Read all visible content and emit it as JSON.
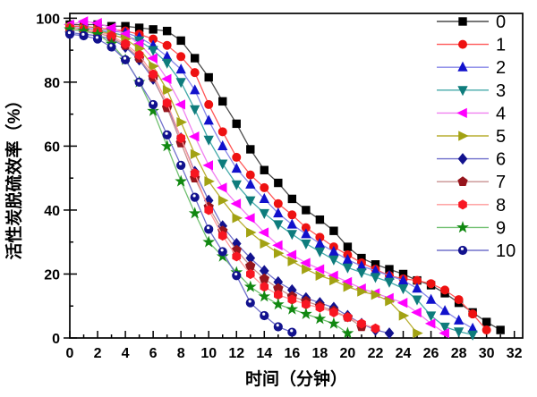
{
  "chart_data": {
    "type": "line",
    "title": "",
    "xlabel": "时间（分钟）",
    "ylabel": "活性炭脱硫效率（%）",
    "xlim": [
      0,
      32.6
    ],
    "ylim": [
      0,
      101.5
    ],
    "x_major_ticks": [
      0,
      2,
      4,
      6,
      8,
      10,
      12,
      14,
      16,
      18,
      20,
      22,
      24,
      26,
      28,
      30,
      32
    ],
    "x_minor_step": 1,
    "y_major_ticks": [
      0,
      20,
      40,
      60,
      80,
      100
    ],
    "y_minor_step": 10,
    "grid": false,
    "legend_position": "top-right-inside",
    "legend_entries": [
      "0",
      "1",
      "2",
      "3",
      "4",
      "5",
      "6",
      "7",
      "8",
      "9",
      "10"
    ],
    "series": [
      {
        "name": "0",
        "marker": "square",
        "marker_color": "#000000",
        "line_color": "#4a4a4a",
        "x": [
          0,
          1,
          2,
          3,
          4,
          5,
          6,
          7,
          8,
          9,
          10,
          11,
          12,
          13,
          14,
          15,
          16,
          17,
          18,
          19,
          20,
          21,
          22,
          23,
          24,
          25,
          26,
          27,
          28,
          29,
          30,
          31
        ],
        "y": [
          98,
          98,
          98,
          97.5,
          97.5,
          97,
          96.5,
          96,
          93,
          87.5,
          81.5,
          74,
          67,
          59,
          52.5,
          48.5,
          43.5,
          40,
          37,
          33.5,
          28.5,
          25,
          23,
          21.5,
          20,
          18,
          16.5,
          14,
          11,
          8,
          5,
          2.5
        ]
      },
      {
        "name": "1",
        "marker": "circle",
        "marker_color": "#ee1111",
        "line_color": "#ff5555",
        "x": [
          0,
          1,
          2,
          3,
          4,
          5,
          6,
          7,
          8,
          9,
          10,
          11,
          12,
          13,
          14,
          15,
          16,
          17,
          18,
          19,
          20,
          21,
          22,
          23,
          24,
          25,
          26,
          27,
          28,
          29,
          30
        ],
        "y": [
          97.5,
          97.5,
          97,
          96.5,
          96,
          95,
          93.5,
          91.5,
          88,
          83,
          73,
          64.5,
          56.5,
          51,
          47,
          42,
          38.5,
          34.5,
          31.5,
          28.5,
          26,
          23.5,
          21.5,
          19.5,
          18.5,
          18,
          17,
          15,
          12,
          7.5,
          2.5
        ]
      },
      {
        "name": "2",
        "marker": "triangle-up",
        "marker_color": "#1111cc",
        "line_color": "#8888e8",
        "x": [
          0,
          1,
          2,
          3,
          4,
          5,
          6,
          7,
          8,
          9,
          10,
          11,
          12,
          13,
          14,
          15,
          16,
          17,
          18,
          19,
          20,
          21,
          22,
          23,
          24,
          25,
          26,
          27,
          28,
          29
        ],
        "y": [
          97,
          97,
          96.5,
          96,
          95.5,
          94,
          91.5,
          88,
          84,
          77.5,
          68,
          60,
          53,
          48,
          43.5,
          39,
          35.5,
          32.5,
          29.5,
          27,
          24.5,
          22.5,
          21,
          19.5,
          18,
          15.5,
          12,
          8.5,
          5.5,
          3
        ]
      },
      {
        "name": "3",
        "marker": "triangle-down",
        "marker_color": "#0e7c7c",
        "line_color": "#44aaaa",
        "x": [
          0,
          1,
          2,
          3,
          4,
          5,
          6,
          7,
          8,
          9,
          10,
          11,
          12,
          13,
          14,
          15,
          16,
          17,
          18,
          19,
          20,
          21,
          22,
          23,
          24,
          25,
          26,
          27,
          28,
          29
        ],
        "y": [
          97,
          96.5,
          96,
          95.5,
          94.5,
          93,
          90,
          86,
          80,
          71.5,
          62,
          54.5,
          48,
          43,
          39,
          35.5,
          32.5,
          29.5,
          27,
          24.5,
          22,
          20.5,
          19,
          17.5,
          15.5,
          12,
          7,
          3.5,
          2,
          1
        ]
      },
      {
        "name": "4",
        "marker": "triangle-left",
        "marker_color": "#ff00ff",
        "line_color": "#f080f0",
        "x": [
          0,
          1,
          2,
          3,
          4,
          5,
          6,
          7,
          8,
          9,
          10,
          11,
          12,
          13,
          14,
          15,
          16,
          17,
          18,
          19,
          20,
          21,
          22,
          23,
          24,
          25,
          26,
          27
        ],
        "y": [
          98,
          99,
          98.5,
          97,
          95,
          92,
          87.5,
          81,
          73,
          63,
          54,
          47,
          42,
          37.5,
          33,
          29,
          26,
          23.5,
          21.5,
          19.5,
          17.5,
          15.5,
          14,
          12.5,
          11,
          8,
          4.5,
          1.5
        ]
      },
      {
        "name": "5",
        "marker": "triangle-right",
        "marker_color": "#a2a213",
        "line_color": "#b8ae30",
        "x": [
          0,
          1,
          2,
          3,
          4,
          5,
          6,
          7,
          8,
          9,
          10,
          11,
          12,
          13,
          14,
          15,
          16,
          17,
          18,
          19,
          20,
          21,
          22,
          23,
          24,
          25
        ],
        "y": [
          97,
          96.5,
          96,
          95,
          93.5,
          90.5,
          85,
          77.5,
          67.5,
          57.5,
          49,
          43,
          37.5,
          33,
          29.5,
          26.5,
          24,
          21.5,
          19.5,
          18,
          16,
          14.5,
          13.5,
          11.5,
          7,
          1.5
        ]
      },
      {
        "name": "6",
        "marker": "diamond",
        "marker_color": "#12128e",
        "line_color": "#7070cc",
        "x": [
          0,
          1,
          2,
          3,
          4,
          5,
          6,
          7,
          8,
          9,
          10,
          11,
          12,
          13,
          14,
          15,
          16,
          17,
          18,
          19,
          20,
          21,
          22,
          23
        ],
        "y": [
          95.5,
          95,
          94.5,
          93.5,
          91,
          87,
          81,
          72.5,
          62.5,
          52,
          43,
          35,
          29.5,
          25,
          21,
          17.5,
          15,
          12.5,
          11,
          9.5,
          7,
          4.5,
          2.5,
          1.5
        ]
      },
      {
        "name": "7",
        "marker": "pentagon",
        "marker_color": "#96151d",
        "line_color": "#c89090",
        "x": [
          0,
          1,
          2,
          3,
          4,
          5,
          6,
          7,
          8,
          9,
          10,
          11,
          12,
          13,
          14,
          15,
          16,
          17,
          18,
          19,
          20,
          21
        ],
        "y": [
          96.5,
          96,
          95.5,
          94,
          91.5,
          87.5,
          81.5,
          72,
          61,
          50,
          41,
          33.5,
          27.5,
          22.5,
          18.5,
          15.5,
          13,
          11.5,
          10,
          8.5,
          6.5,
          3.5
        ]
      },
      {
        "name": "8",
        "marker": "hexagon",
        "marker_color": "#f81622",
        "line_color": "#ff9999",
        "x": [
          0,
          1,
          2,
          3,
          4,
          5,
          6,
          7,
          8,
          9,
          10,
          11,
          12,
          13,
          14,
          15,
          16,
          17,
          18,
          19,
          20,
          21,
          22
        ],
        "y": [
          97,
          96.5,
          96,
          94.5,
          92,
          88.5,
          82.5,
          73.5,
          62.5,
          51.5,
          40,
          32,
          25.5,
          20,
          16,
          13.5,
          12,
          10.5,
          9.5,
          8,
          6.5,
          4.5,
          3
        ]
      },
      {
        "name": "9",
        "marker": "star",
        "marker_color": "#118811",
        "line_color": "#70c070",
        "x": [
          0,
          1,
          2,
          3,
          4,
          5,
          6,
          7,
          8,
          9,
          10,
          11,
          12,
          13,
          14,
          15,
          16,
          17,
          18,
          19,
          20
        ],
        "y": [
          96.5,
          96,
          95,
          92,
          87,
          80,
          71,
          60,
          49,
          39,
          30,
          25.5,
          20.5,
          16,
          13,
          10.5,
          9,
          7.5,
          6,
          4.5,
          1.5
        ]
      },
      {
        "name": "10",
        "marker": "circle-dot",
        "marker_color": "#12128e",
        "line_color": "#7070cc",
        "x": [
          0,
          1,
          2,
          3,
          4,
          5,
          6,
          7,
          8,
          9,
          10,
          11,
          12,
          13,
          14,
          15,
          16
        ],
        "y": [
          95,
          94.5,
          93.5,
          91,
          87,
          80,
          73,
          63.5,
          54,
          44,
          34,
          27,
          19.5,
          11,
          7,
          3.5,
          1.8
        ]
      }
    ],
    "axis_color": "#000000",
    "tick_label_size": 16,
    "axis_label_size": 19,
    "legend_label_size": 20
  }
}
